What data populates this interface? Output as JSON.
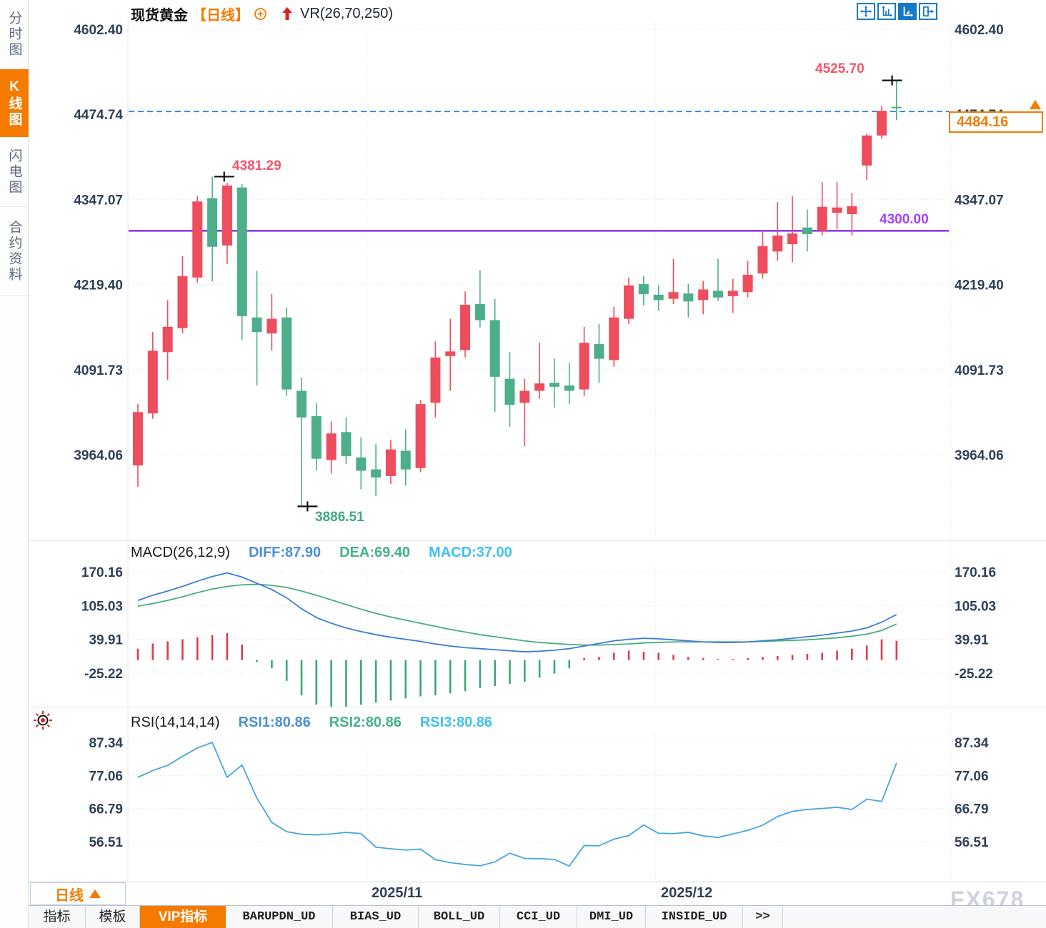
{
  "header": {
    "symbol": "现货黄金",
    "period_tag": "【日线】",
    "overlay_indicator": "VR(26,70,250)"
  },
  "sidebar": {
    "items": [
      {
        "label": "分时图",
        "active": false
      },
      {
        "label": "K线图",
        "active": true
      },
      {
        "label": "闪电图",
        "active": false
      },
      {
        "label": "合约资料",
        "active": false
      }
    ]
  },
  "toolbar": {
    "buttons": [
      "pan-crosshair",
      "axis-scale",
      "chart-mode-active",
      "pop-out"
    ]
  },
  "price_box": {
    "value": "4484.16"
  },
  "bottom": {
    "period_selector": "日线",
    "watermark": "FX678",
    "tabs": [
      {
        "label": "指标",
        "active": false
      },
      {
        "label": "模板",
        "active": false
      },
      {
        "label": "VIP指标",
        "active": true
      },
      {
        "label": "BARUPDN_UD",
        "active": false
      },
      {
        "label": "BIAS_UD",
        "active": false
      },
      {
        "label": "BOLL_UD",
        "active": false
      },
      {
        "label": "CCI_UD",
        "active": false
      },
      {
        "label": "DMI_UD",
        "active": false
      },
      {
        "label": "INSIDE_UD",
        "active": false
      },
      {
        "label": ">>",
        "active": false
      }
    ]
  },
  "chart_data": [
    {
      "type": "candlestick",
      "symbol": "现货黄金",
      "period": "日线",
      "up_color": "#ee4d5e",
      "down_color": "#4daf8a",
      "y_ticks": [
        "4602.40",
        "4474.74",
        "4347.07",
        "4219.40",
        "4091.73",
        "3964.06"
      ],
      "x_axis_labels": [
        {
          "label": "2025/11",
          "candle_index": 16.4
        },
        {
          "label": "2025/12",
          "candle_index": 35.8
        }
      ],
      "support_line": {
        "price": 4300.0,
        "label": "4300.00",
        "color": "#7d1ce8"
      },
      "current_price_dashed_line": {
        "price": 4479.0,
        "color": "#1f7fe8"
      },
      "annotations": [
        {
          "text": "4381.29",
          "price": 4381.29,
          "candle_index": 6.8,
          "align": "right"
        },
        {
          "text": "4525.70",
          "price": 4525.7,
          "candle_index": 51.7,
          "align": "left"
        },
        {
          "text": "3886.51",
          "price": 3886.51,
          "candle_index": 12.4,
          "align": "below"
        }
      ],
      "candles": [
        [
          3948,
          4040,
          3916,
          4028
        ],
        [
          4026,
          4148,
          4018,
          4120
        ],
        [
          4118,
          4196,
          4076,
          4156
        ],
        [
          4154,
          4262,
          4146,
          4232
        ],
        [
          4230,
          4352,
          4222,
          4344
        ],
        [
          4349,
          4381.29,
          4224,
          4276
        ],
        [
          4278,
          4372,
          4250,
          4368
        ],
        [
          4365,
          4370,
          4136,
          4172
        ],
        [
          4170,
          4240,
          4068,
          4148
        ],
        [
          4146,
          4205,
          4120,
          4168
        ],
        [
          4170,
          4185,
          4052,
          4062
        ],
        [
          4060,
          4080,
          3886.51,
          4020
        ],
        [
          4022,
          4042,
          3940,
          3958
        ],
        [
          3956,
          4014,
          3936,
          3996
        ],
        [
          3998,
          4020,
          3950,
          3962
        ],
        [
          3960,
          3990,
          3912,
          3940
        ],
        [
          3942,
          3980,
          3902,
          3930
        ],
        [
          3932,
          3986,
          3920,
          3972
        ],
        [
          3970,
          4002,
          3918,
          3942
        ],
        [
          3944,
          4046,
          3938,
          4040
        ],
        [
          4042,
          4134,
          4020,
          4110
        ],
        [
          4112,
          4168,
          4060,
          4119
        ],
        [
          4121,
          4209,
          4110,
          4189
        ],
        [
          4190,
          4241,
          4155,
          4166
        ],
        [
          4166,
          4198,
          4028,
          4081
        ],
        [
          4078,
          4118,
          4006,
          4039
        ],
        [
          4042,
          4078,
          3977,
          4060
        ],
        [
          4060,
          4132,
          4048,
          4071
        ],
        [
          4072,
          4108,
          4035,
          4066
        ],
        [
          4068,
          4102,
          4040,
          4060
        ],
        [
          4062,
          4156,
          4052,
          4132
        ],
        [
          4130,
          4160,
          4072,
          4108
        ],
        [
          4106,
          4186,
          4096,
          4170
        ],
        [
          4168,
          4230,
          4160,
          4218
        ],
        [
          4220,
          4232,
          4188,
          4205
        ],
        [
          4204,
          4218,
          4180,
          4196
        ],
        [
          4198,
          4258,
          4190,
          4208
        ],
        [
          4206,
          4220,
          4170,
          4194
        ],
        [
          4196,
          4225,
          4175,
          4212
        ],
        [
          4210,
          4258,
          4195,
          4200
        ],
        [
          4202,
          4228,
          4177,
          4210
        ],
        [
          4208,
          4255,
          4200,
          4234
        ],
        [
          4236,
          4300,
          4228,
          4277
        ],
        [
          4269,
          4343,
          4255,
          4293
        ],
        [
          4280,
          4352,
          4253,
          4296
        ],
        [
          4305,
          4332,
          4269,
          4295
        ],
        [
          4300,
          4373,
          4293,
          4336
        ],
        [
          4327,
          4373,
          4303,
          4335
        ],
        [
          4325,
          4357,
          4293,
          4337
        ],
        [
          4398,
          4446,
          4376,
          4443
        ],
        [
          4443,
          4487,
          4438,
          4480
        ],
        [
          4486,
          4525.7,
          4466,
          4484.16
        ]
      ]
    },
    {
      "type": "macd",
      "name": "MACD(26,12,9)",
      "legend": [
        {
          "label": "DIFF:87.90",
          "color": "#4a8fdb"
        },
        {
          "label": "DEA:69.40",
          "color": "#44b08c"
        },
        {
          "label": "MACD:37.00",
          "color": "#3fc0f0"
        }
      ],
      "y_ticks": [
        "170.16",
        "105.03",
        "39.91",
        "-25.22"
      ],
      "diff": [
        115,
        125,
        133,
        142,
        152,
        161,
        168,
        160,
        148,
        136,
        120,
        99,
        82,
        71,
        62,
        55,
        49,
        44,
        40,
        36,
        31,
        27,
        24,
        22,
        20,
        18,
        16,
        17,
        19,
        22,
        27,
        32,
        37,
        40,
        42,
        41,
        39,
        37,
        35,
        34,
        34,
        35,
        37,
        39,
        42,
        45,
        48,
        52,
        56,
        62,
        73,
        87.9
      ],
      "dea": [
        104,
        109,
        115,
        122,
        130,
        137,
        142,
        145,
        146,
        144,
        140,
        133,
        125,
        116,
        107,
        98,
        90,
        83,
        77,
        71,
        65,
        59,
        54,
        49,
        45,
        41,
        37,
        34,
        32,
        30,
        29,
        29,
        30,
        31,
        33,
        34,
        35,
        35,
        35,
        35,
        35,
        35,
        36,
        37,
        38,
        39,
        41,
        43,
        46,
        50,
        57,
        69.4
      ],
      "histogram": [
        22,
        32,
        36,
        40,
        44,
        48,
        52,
        30,
        -4,
        -16,
        -40,
        -68,
        -86,
        -90,
        -90,
        -86,
        -82,
        -78,
        -74,
        -70,
        -68,
        -64,
        -60,
        -54,
        -50,
        -46,
        -42,
        -34,
        -26,
        -16,
        4,
        6,
        14,
        18,
        16,
        14,
        10,
        6,
        4,
        2,
        2,
        4,
        6,
        8,
        10,
        12,
        14,
        18,
        22,
        28,
        40,
        37
      ],
      "hist_up_color": "#e0394d",
      "hist_down_color": "#3ba776"
    },
    {
      "type": "rsi",
      "name": "RSI(14,14,14)",
      "legend": [
        {
          "label": "RSI1:80.86",
          "color": "#4a8fdb"
        },
        {
          "label": "RSI2:80.86",
          "color": "#44b08c"
        },
        {
          "label": "RSI3:80.86",
          "color": "#3fc0f0"
        }
      ],
      "y_ticks": [
        "87.34",
        "77.06",
        "66.79",
        "56.51"
      ],
      "line_color": "#45a6dc",
      "rsi": [
        76.5,
        78.6,
        80.2,
        83.0,
        85.6,
        87.34,
        76.5,
        80.3,
        70.0,
        62.5,
        59.6,
        58.8,
        58.6,
        58.9,
        59.4,
        59.0,
        54.8,
        54.3,
        53.9,
        54.2,
        50.9,
        50.0,
        49.4,
        49.0,
        50.2,
        52.9,
        51.3,
        51.2,
        51.0,
        48.9,
        55.3,
        55.2,
        57.3,
        58.4,
        61.7,
        59.1,
        59.0,
        59.4,
        58.3,
        57.8,
        58.9,
        60.0,
        61.6,
        64.3,
        65.9,
        66.5,
        66.8,
        67.2,
        66.5,
        69.7,
        69.0,
        80.86
      ]
    }
  ]
}
